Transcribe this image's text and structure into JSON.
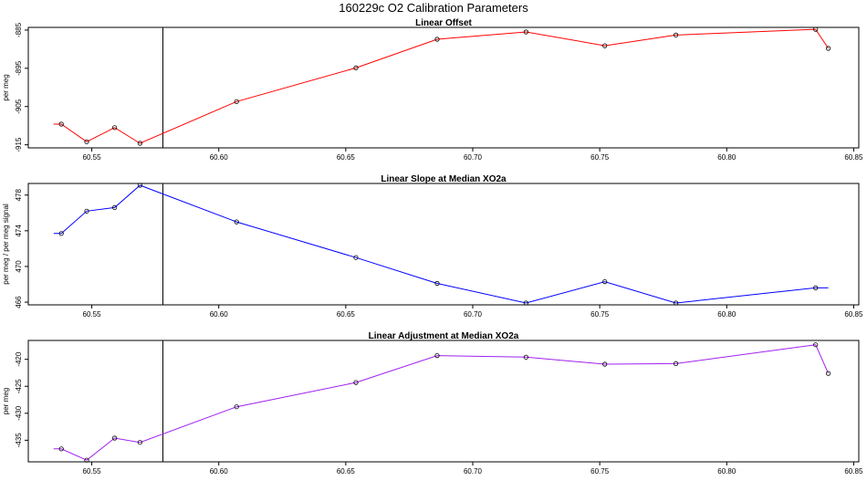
{
  "figure": {
    "title": "160229c   O2 Calibration Parameters"
  },
  "chart_data": [
    {
      "type": "line",
      "title": "Linear Offset",
      "ylabel": "per meg",
      "xlabel": "",
      "xlim": [
        60.525,
        60.852
      ],
      "ylim": [
        -915.8,
        -884.3
      ],
      "xticks": [
        60.55,
        60.6,
        60.65,
        60.7,
        60.75,
        60.8,
        60.85
      ],
      "xtick_labels": [
        "60.55",
        "60.60",
        "60.65",
        "60.70",
        "60.75",
        "60.80",
        "60.85"
      ],
      "yticks": [
        -915,
        -905,
        -895,
        -885
      ],
      "ytick_labels": [
        "-915",
        "-905",
        "-895",
        "-885"
      ],
      "vline_x": 60.578,
      "color": "#ff0000",
      "lead_in_x": 60.535,
      "series": [
        {
          "x": [
            60.538,
            60.548,
            60.559,
            60.569,
            60.607,
            60.654,
            60.686,
            60.721,
            60.752,
            60.78,
            60.835,
            60.84
          ],
          "values": [
            -909.6,
            -914.2,
            -910.5,
            -914.6,
            -903.7,
            -894.9,
            -887.4,
            -885.5,
            -889.1,
            -886.3,
            -884.8,
            -889.8
          ]
        }
      ]
    },
    {
      "type": "line",
      "title": "Linear Slope at Median XO2a",
      "ylabel": "per meg / per meg signal",
      "xlabel": "",
      "xlim": [
        60.525,
        60.852
      ],
      "ylim": [
        465.7,
        479.3
      ],
      "xticks": [
        60.55,
        60.6,
        60.65,
        60.7,
        60.75,
        60.8,
        60.85
      ],
      "xtick_labels": [
        "60.55",
        "60.60",
        "60.65",
        "60.70",
        "60.75",
        "60.80",
        "60.85"
      ],
      "yticks": [
        466,
        470,
        474,
        478
      ],
      "ytick_labels": [
        "466",
        "470",
        "474",
        "478"
      ],
      "vline_x": 60.578,
      "color": "#0000ff",
      "lead_in_x": 60.535,
      "lead_out_x": 60.84,
      "series": [
        {
          "x": [
            60.538,
            60.548,
            60.559,
            60.569,
            60.607,
            60.654,
            60.686,
            60.721,
            60.752,
            60.78,
            60.835
          ],
          "values": [
            473.7,
            476.2,
            476.6,
            479.1,
            475.0,
            471.0,
            468.1,
            465.9,
            468.3,
            465.9,
            467.6
          ]
        }
      ]
    },
    {
      "type": "line",
      "title": "Linear Adjustment at Median XO2a",
      "ylabel": "per meg",
      "xlabel": "",
      "xlim": [
        60.525,
        60.852
      ],
      "ylim": [
        -439.0,
        -416.5
      ],
      "xticks": [
        60.55,
        60.6,
        60.65,
        60.7,
        60.75,
        60.8,
        60.85
      ],
      "xtick_labels": [
        "60.55",
        "60.60",
        "60.65",
        "60.70",
        "60.75",
        "60.80",
        "60.85"
      ],
      "yticks": [
        -435,
        -430,
        -425,
        -420
      ],
      "ytick_labels": [
        "-435",
        "-430",
        "-425",
        "-420"
      ],
      "vline_x": 60.578,
      "color": "#a020f0",
      "lead_in_x": 60.535,
      "series": [
        {
          "x": [
            60.538,
            60.548,
            60.559,
            60.569,
            60.607,
            60.654,
            60.686,
            60.721,
            60.752,
            60.78,
            60.835,
            60.84
          ],
          "values": [
            -436.6,
            -438.7,
            -434.6,
            -435.4,
            -428.8,
            -424.3,
            -419.3,
            -419.6,
            -420.9,
            -420.8,
            -417.3,
            -422.6
          ]
        }
      ]
    }
  ]
}
